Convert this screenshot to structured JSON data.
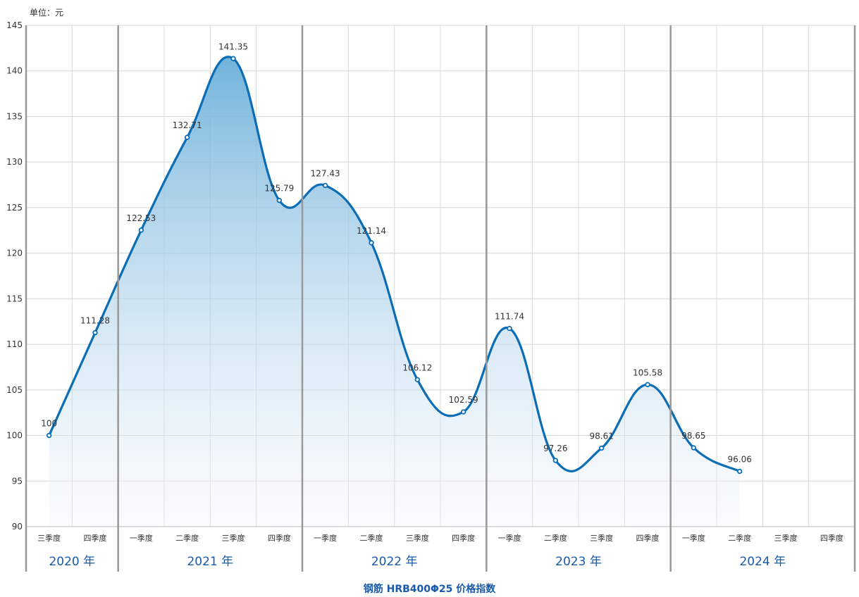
{
  "chart_data": {
    "type": "area",
    "title": "钢筋 HRB400Φ25 价格指数",
    "unit_label": "单位：元",
    "ylim": [
      90,
      145
    ],
    "ytick_step": 5,
    "grid": true,
    "quarters": [
      "三季度",
      "四季度",
      "一季度",
      "二季度",
      "三季度",
      "四季度",
      "一季度",
      "二季度",
      "三季度",
      "四季度",
      "一季度",
      "二季度",
      "三季度",
      "四季度",
      "一季度",
      "二季度",
      "三季度",
      "四季度"
    ],
    "years": [
      {
        "label": "2020 年",
        "start": 0,
        "span": 2
      },
      {
        "label": "2021 年",
        "start": 2,
        "span": 4
      },
      {
        "label": "2022 年",
        "start": 6,
        "span": 4
      },
      {
        "label": "2023 年",
        "start": 10,
        "span": 4
      },
      {
        "label": "2024 年",
        "start": 14,
        "span": 4
      }
    ],
    "series": [
      {
        "values": [
          100,
          111.28,
          122.53,
          132.71,
          141.35,
          125.79,
          127.43,
          121.14,
          106.12,
          102.59,
          111.74,
          97.26,
          98.61,
          105.58,
          98.65,
          96.06
        ],
        "labels": [
          "100",
          "111.28",
          "122.53",
          "132.71",
          "141.35",
          "125.79",
          "127.43",
          "121.14",
          "106.12",
          "102.59",
          "111.74",
          "97.26",
          "98.61",
          "105.58",
          "98.65",
          "96.06"
        ]
      }
    ],
    "colors": {
      "line": "#0a6db5",
      "area_top": "#6aafd9",
      "area_bottom": "#eef3fa",
      "grid": "#d8d8d8",
      "year_divider": "#999999",
      "year_text": "#1a5aa8"
    }
  }
}
